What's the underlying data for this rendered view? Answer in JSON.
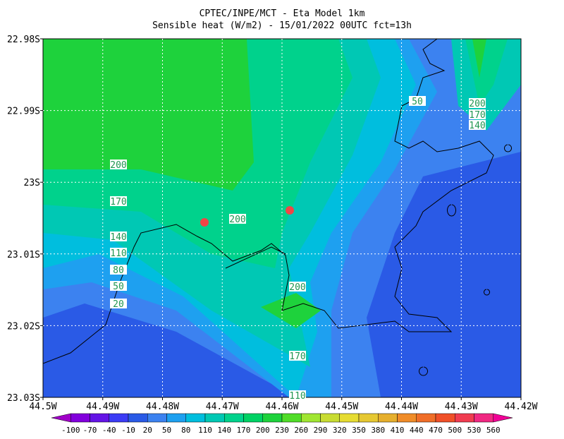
{
  "title": "CPTEC/INPE/MCT -  Eta Model 1km",
  "subtitle": "Sensible heat (W/m2) - 15/01/2022 00UTC fct=13h",
  "y_axis": {
    "labels": [
      "22.98S",
      "22.99S",
      "23S",
      "23.01S",
      "23.02S",
      "23.03S"
    ]
  },
  "x_axis": {
    "labels": [
      "44.5W",
      "44.49W",
      "44.48W",
      "44.47W",
      "44.46W",
      "44.45W",
      "44.44W",
      "44.43W",
      "44.42W"
    ]
  },
  "colorbar": {
    "levels": [
      -100,
      -70,
      -40,
      -10,
      20,
      50,
      80,
      110,
      140,
      170,
      200,
      230,
      260,
      290,
      320,
      350,
      380,
      410,
      440,
      470,
      500,
      530,
      560
    ],
    "colors": [
      "#a000c8",
      "#8200dc",
      "#6414e6",
      "#3c3cf5",
      "#2a5ae6",
      "#3c82f0",
      "#1ea0f0",
      "#00bede",
      "#00c8b4",
      "#00d28c",
      "#00d264",
      "#1ed23c",
      "#50dc28",
      "#a0e632",
      "#c8dc32",
      "#e6dc32",
      "#e6c832",
      "#e6af2d",
      "#f08c28",
      "#f06e28",
      "#f05028",
      "#f03c50",
      "#f02882",
      "#f00096"
    ]
  },
  "contour_labels": [
    200,
    170,
    140,
    110,
    80,
    50,
    20,
    200,
    200,
    170,
    110,
    50,
    200,
    170,
    140
  ]
}
